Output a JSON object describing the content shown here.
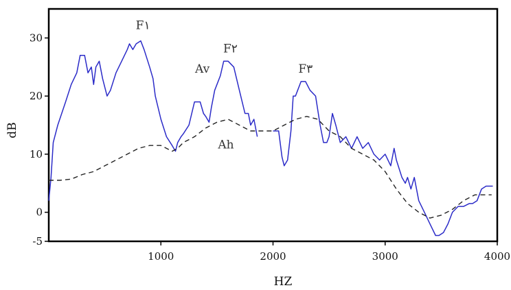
{
  "chart_data": {
    "type": "line",
    "title": "",
    "xlabel": "HZ",
    "ylabel": "dB",
    "xlim": [
      0,
      4000
    ],
    "ylim": [
      -5,
      35
    ],
    "x_ticks": [
      1000,
      2000,
      3000,
      4000
    ],
    "y_ticks": [
      -5,
      0,
      10,
      20,
      30
    ],
    "grid": false,
    "legend": "none",
    "series": [
      {
        "style": "solid",
        "color": "#2b2bc8",
        "points": [
          [
            0,
            2
          ],
          [
            20,
            6
          ],
          [
            40,
            12
          ],
          [
            80,
            15
          ],
          [
            150,
            19
          ],
          [
            200,
            22
          ],
          [
            250,
            24
          ],
          [
            280,
            27
          ],
          [
            320,
            27
          ],
          [
            350,
            24
          ],
          [
            380,
            25
          ],
          [
            400,
            22
          ],
          [
            420,
            25
          ],
          [
            450,
            26
          ],
          [
            480,
            23
          ],
          [
            520,
            20
          ],
          [
            550,
            21
          ],
          [
            600,
            24
          ],
          [
            650,
            26
          ],
          [
            700,
            28
          ],
          [
            720,
            29
          ],
          [
            750,
            28
          ],
          [
            780,
            29
          ],
          [
            820,
            29.5
          ],
          [
            850,
            28
          ],
          [
            900,
            25
          ],
          [
            930,
            23
          ],
          [
            950,
            20
          ],
          [
            1000,
            16
          ],
          [
            1050,
            13
          ],
          [
            1100,
            11.5
          ],
          [
            1130,
            10.5
          ],
          [
            1150,
            12
          ],
          [
            1180,
            13
          ],
          [
            1200,
            13.5
          ],
          [
            1250,
            15
          ],
          [
            1300,
            19
          ],
          [
            1350,
            19
          ],
          [
            1380,
            17
          ],
          [
            1400,
            16.5
          ],
          [
            1430,
            15.5
          ],
          [
            1450,
            18
          ],
          [
            1480,
            21
          ],
          [
            1500,
            22
          ],
          [
            1530,
            23.5
          ],
          [
            1560,
            26
          ],
          [
            1600,
            26
          ],
          [
            1650,
            25
          ],
          [
            1700,
            21
          ],
          [
            1750,
            17
          ],
          [
            1780,
            17
          ],
          [
            1800,
            15
          ],
          [
            1830,
            16
          ],
          [
            1860,
            13
          ]
        ]
      },
      {
        "style": "solid",
        "color": "#2b2bc8",
        "points": [
          [
            2000,
            14
          ],
          [
            2050,
            14
          ],
          [
            2080,
            9.5
          ],
          [
            2100,
            8
          ],
          [
            2130,
            9
          ],
          [
            2160,
            14
          ],
          [
            2180,
            20
          ],
          [
            2200,
            20
          ],
          [
            2220,
            21
          ],
          [
            2250,
            22.5
          ],
          [
            2290,
            22.5
          ],
          [
            2330,
            21
          ],
          [
            2380,
            20
          ],
          [
            2420,
            15
          ],
          [
            2450,
            12
          ],
          [
            2480,
            12
          ],
          [
            2500,
            13
          ],
          [
            2530,
            17
          ],
          [
            2560,
            15
          ],
          [
            2600,
            12
          ],
          [
            2650,
            13
          ],
          [
            2700,
            11
          ],
          [
            2750,
            13
          ],
          [
            2800,
            11
          ],
          [
            2850,
            12
          ],
          [
            2900,
            10
          ],
          [
            2950,
            9
          ],
          [
            3000,
            10
          ],
          [
            3050,
            8
          ],
          [
            3080,
            11
          ],
          [
            3100,
            9
          ],
          [
            3150,
            6
          ],
          [
            3180,
            5
          ],
          [
            3200,
            6
          ],
          [
            3230,
            4
          ],
          [
            3260,
            6
          ],
          [
            3300,
            2
          ],
          [
            3350,
            0
          ],
          [
            3400,
            -2
          ],
          [
            3450,
            -4
          ],
          [
            3480,
            -4
          ],
          [
            3520,
            -3.5
          ],
          [
            3560,
            -2
          ],
          [
            3600,
            0
          ],
          [
            3650,
            1
          ],
          [
            3700,
            1
          ],
          [
            3750,
            1.5
          ],
          [
            3780,
            1.5
          ],
          [
            3820,
            2
          ],
          [
            3860,
            4
          ],
          [
            3900,
            4.5
          ],
          [
            3940,
            4.5
          ],
          [
            3960,
            4.5
          ]
        ]
      },
      {
        "style": "dashed",
        "color": "#222222",
        "points": [
          [
            0,
            5.5
          ],
          [
            100,
            5.5
          ],
          [
            200,
            5.7
          ],
          [
            300,
            6.5
          ],
          [
            400,
            7
          ],
          [
            500,
            8
          ],
          [
            600,
            9
          ],
          [
            700,
            10
          ],
          [
            800,
            11
          ],
          [
            900,
            11.5
          ],
          [
            1000,
            11.5
          ],
          [
            1100,
            10.5
          ],
          [
            1150,
            11
          ],
          [
            1200,
            12
          ],
          [
            1300,
            13
          ],
          [
            1400,
            14.5
          ],
          [
            1500,
            15.5
          ],
          [
            1600,
            16
          ],
          [
            1700,
            15
          ],
          [
            1800,
            14
          ],
          [
            1900,
            14
          ],
          [
            2000,
            14
          ],
          [
            2100,
            15
          ],
          [
            2200,
            16
          ],
          [
            2300,
            16.5
          ],
          [
            2400,
            16
          ],
          [
            2500,
            14
          ],
          [
            2600,
            13
          ],
          [
            2700,
            11
          ],
          [
            2800,
            10
          ],
          [
            2900,
            9
          ],
          [
            3000,
            7
          ],
          [
            3100,
            4
          ],
          [
            3200,
            1.5
          ],
          [
            3300,
            0
          ],
          [
            3400,
            -1
          ],
          [
            3500,
            -0.5
          ],
          [
            3600,
            0.5
          ],
          [
            3700,
            2
          ],
          [
            3800,
            3
          ],
          [
            3900,
            3
          ],
          [
            3950,
            3
          ]
        ]
      }
    ],
    "annotations": [
      {
        "text": "F١",
        "x": 840,
        "y": 31.5
      },
      {
        "text": "F٢",
        "x": 1620,
        "y": 27.5
      },
      {
        "text": "F٣",
        "x": 2290,
        "y": 24
      },
      {
        "text": "Av",
        "x": 1370,
        "y": 24
      },
      {
        "text": "Ah",
        "x": 1580,
        "y": 11
      }
    ]
  }
}
